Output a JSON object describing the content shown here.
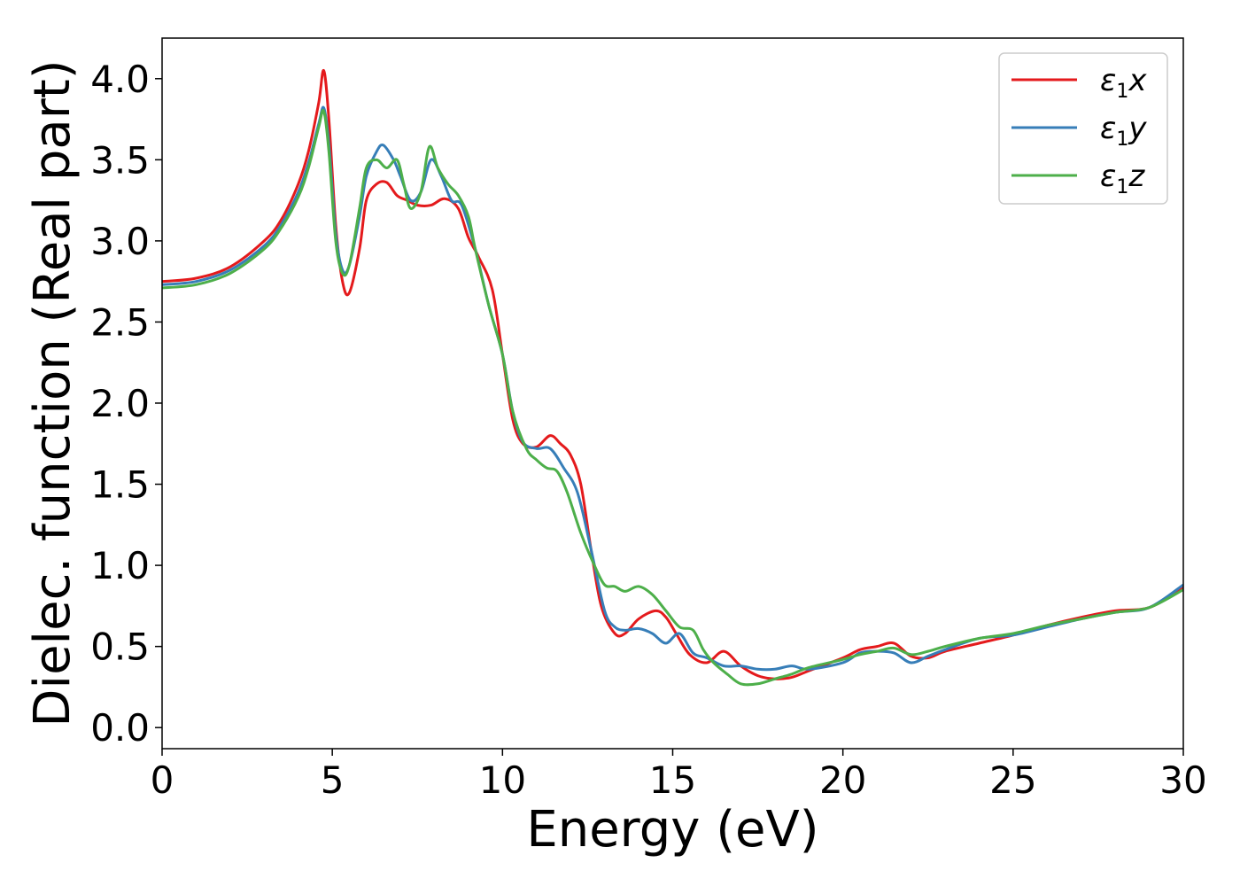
{
  "chart_data": {
    "type": "line",
    "xlabel": "Energy (eV)",
    "ylabel": "Dielec. function (Real part)",
    "xlim": [
      0,
      30
    ],
    "ylim": [
      -0.13,
      4.25
    ],
    "xticks": [
      0,
      5,
      10,
      15,
      20,
      25,
      30
    ],
    "xtick_labels": [
      "0",
      "5",
      "10",
      "15",
      "20",
      "25",
      "30"
    ],
    "yticks": [
      0.0,
      0.5,
      1.0,
      1.5,
      2.0,
      2.5,
      3.0,
      3.5,
      4.0
    ],
    "ytick_labels": [
      "0.0",
      "0.5",
      "1.0",
      "1.5",
      "2.0",
      "2.5",
      "3.0",
      "3.5",
      "4.0"
    ],
    "grid": false,
    "legend_position": "top-right",
    "series": [
      {
        "name": "ε1x",
        "legend_main": "ε",
        "legend_sub": "1",
        "legend_suffix": "x",
        "color": "#e41a1c",
        "x": [
          0,
          1,
          2,
          3,
          3.5,
          4,
          4.3,
          4.6,
          4.75,
          4.9,
          5.1,
          5.3,
          5.5,
          5.8,
          6.0,
          6.3,
          6.6,
          6.9,
          7.2,
          7.5,
          7.9,
          8.3,
          8.7,
          9.0,
          9.3,
          9.7,
          10.0,
          10.3,
          10.6,
          11.0,
          11.4,
          11.7,
          12.0,
          12.3,
          12.6,
          12.9,
          13.3,
          13.6,
          14.0,
          14.5,
          14.8,
          15.1,
          15.5,
          16.0,
          16.5,
          17.0,
          17.5,
          18.0,
          18.5,
          19.0,
          20.0,
          20.5,
          21.0,
          21.5,
          22.0,
          22.5,
          23.0,
          24.0,
          25.0,
          26.0,
          27.0,
          28.0,
          29.0,
          30.0
        ],
        "y": [
          2.75,
          2.77,
          2.84,
          3.0,
          3.13,
          3.35,
          3.55,
          3.85,
          4.05,
          3.75,
          3.1,
          2.75,
          2.68,
          2.95,
          3.25,
          3.35,
          3.36,
          3.28,
          3.25,
          3.22,
          3.22,
          3.26,
          3.2,
          3.02,
          2.9,
          2.7,
          2.3,
          1.9,
          1.75,
          1.73,
          1.8,
          1.75,
          1.68,
          1.5,
          1.1,
          0.75,
          0.58,
          0.58,
          0.67,
          0.72,
          0.68,
          0.58,
          0.45,
          0.4,
          0.47,
          0.38,
          0.32,
          0.3,
          0.31,
          0.35,
          0.43,
          0.48,
          0.5,
          0.52,
          0.44,
          0.43,
          0.47,
          0.52,
          0.57,
          0.63,
          0.68,
          0.72,
          0.74,
          0.86
        ]
      },
      {
        "name": "ε1y",
        "legend_main": "ε",
        "legend_sub": "1",
        "legend_suffix": "y",
        "color": "#377eb8",
        "x": [
          0,
          1,
          2,
          3,
          3.5,
          4,
          4.3,
          4.6,
          4.75,
          4.9,
          5.1,
          5.3,
          5.5,
          5.8,
          6.0,
          6.3,
          6.5,
          6.8,
          7.0,
          7.3,
          7.6,
          7.9,
          8.2,
          8.5,
          8.8,
          9.2,
          9.6,
          10.0,
          10.3,
          10.6,
          11.0,
          11.4,
          11.8,
          12.2,
          12.6,
          13.0,
          13.3,
          13.6,
          14.0,
          14.4,
          14.8,
          15.2,
          15.6,
          16.0,
          16.5,
          17.0,
          17.5,
          18.0,
          18.5,
          19.0,
          20.0,
          20.5,
          21.0,
          21.5,
          22.0,
          22.5,
          23.0,
          24.0,
          25.0,
          26.0,
          27.0,
          28.0,
          29.0,
          30.0
        ],
        "y": [
          2.73,
          2.75,
          2.82,
          2.97,
          3.1,
          3.3,
          3.48,
          3.72,
          3.82,
          3.6,
          3.05,
          2.82,
          2.85,
          3.15,
          3.4,
          3.55,
          3.59,
          3.5,
          3.4,
          3.25,
          3.3,
          3.5,
          3.4,
          3.25,
          3.22,
          2.95,
          2.6,
          2.3,
          1.95,
          1.76,
          1.72,
          1.72,
          1.6,
          1.45,
          1.1,
          0.72,
          0.62,
          0.6,
          0.61,
          0.58,
          0.52,
          0.58,
          0.46,
          0.43,
          0.38,
          0.38,
          0.36,
          0.36,
          0.38,
          0.36,
          0.4,
          0.46,
          0.47,
          0.46,
          0.4,
          0.44,
          0.48,
          0.55,
          0.57,
          0.62,
          0.67,
          0.71,
          0.74,
          0.88
        ]
      },
      {
        "name": "ε1z",
        "legend_main": "ε",
        "legend_sub": "1",
        "legend_suffix": "z",
        "color": "#4daf4a",
        "x": [
          0,
          1,
          2,
          3,
          3.5,
          4,
          4.3,
          4.6,
          4.75,
          4.9,
          5.1,
          5.3,
          5.5,
          5.8,
          6.0,
          6.3,
          6.6,
          6.9,
          7.1,
          7.3,
          7.6,
          7.85,
          8.1,
          8.4,
          8.7,
          9.0,
          9.2,
          9.6,
          10.0,
          10.3,
          10.7,
          11.0,
          11.3,
          11.6,
          11.9,
          12.3,
          12.7,
          13.0,
          13.3,
          13.6,
          14.0,
          14.4,
          14.8,
          15.2,
          15.6,
          15.9,
          16.2,
          16.6,
          17.0,
          17.5,
          18.0,
          18.5,
          19.0,
          20.0,
          20.5,
          21.0,
          21.5,
          22.0,
          22.5,
          23.0,
          24.0,
          25.0,
          26.0,
          27.0,
          28.0,
          29.0,
          30.0
        ],
        "y": [
          2.71,
          2.73,
          2.8,
          2.95,
          3.08,
          3.27,
          3.45,
          3.7,
          3.8,
          3.55,
          3.0,
          2.8,
          2.85,
          3.2,
          3.45,
          3.5,
          3.45,
          3.5,
          3.35,
          3.2,
          3.3,
          3.58,
          3.45,
          3.35,
          3.28,
          3.15,
          2.95,
          2.6,
          2.3,
          1.95,
          1.72,
          1.65,
          1.6,
          1.58,
          1.45,
          1.2,
          1.0,
          0.88,
          0.87,
          0.84,
          0.87,
          0.82,
          0.72,
          0.62,
          0.6,
          0.48,
          0.4,
          0.33,
          0.27,
          0.27,
          0.3,
          0.33,
          0.37,
          0.42,
          0.45,
          0.47,
          0.49,
          0.45,
          0.47,
          0.5,
          0.55,
          0.58,
          0.63,
          0.67,
          0.71,
          0.74,
          0.85
        ]
      }
    ]
  }
}
